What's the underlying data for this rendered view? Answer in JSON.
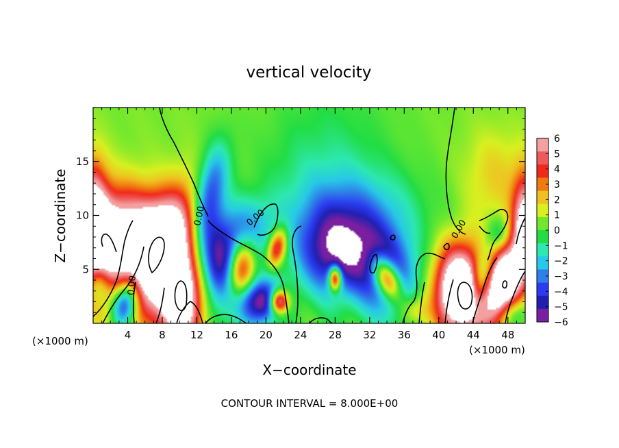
{
  "chart_data": {
    "type": "heatmap",
    "title": "vertical velocity",
    "xlabel": "X−coordinate",
    "ylabel": "Z−coordinate",
    "x_unit_left": "(×1000 m)",
    "x_unit_right": "(×1000 m)",
    "footer": "CONTOUR INTERVAL = 8.000E+00",
    "xlim": [
      0,
      50
    ],
    "ylim": [
      0,
      20
    ],
    "x_ticks": [
      4,
      8,
      12,
      16,
      20,
      24,
      28,
      32,
      36,
      40,
      44,
      48
    ],
    "y_ticks": [
      5,
      10,
      15
    ],
    "colorbar": {
      "min": -6,
      "max": 6,
      "ticks": [
        "6",
        "5",
        "4",
        "3",
        "2",
        "1",
        "0",
        "−1",
        "−2",
        "−3",
        "−4",
        "−5",
        "−6"
      ],
      "colors": [
        "#7a1fa0",
        "#2020b0",
        "#2b3cf0",
        "#2e7fe8",
        "#27c9e8",
        "#2de8b0",
        "#22dd44",
        "#6fe82e",
        "#d8f020",
        "#f0c020",
        "#f07a10",
        "#f02a1a",
        "#ee5a5a",
        "#f4a0a0"
      ]
    },
    "contour_labels": [
      {
        "text": "0.00",
        "x": 12.6,
        "y": 9.9,
        "rotate": -78
      },
      {
        "text": "0.00",
        "x": 19.0,
        "y": 9.6,
        "rotate": -40
      },
      {
        "text": "0.00",
        "x": 4.8,
        "y": 3.5,
        "rotate": -85
      },
      {
        "text": "0.00",
        "x": 42.6,
        "y": 8.6,
        "rotate": -60
      }
    ],
    "features": [
      {
        "x": 1.0,
        "z": 7.2,
        "w": 2.0,
        "peak": 9.5,
        "sx": 2.2,
        "sz": 3.5,
        "rot": -30
      },
      {
        "x": 0.0,
        "z": 11.0,
        "w": 1.5,
        "peak": 6.0,
        "sx": 1.2,
        "sz": 3.0,
        "rot": 0
      },
      {
        "x": 7.5,
        "z": 6.5,
        "w": 2.2,
        "peak": 11.0,
        "sx": 2.2,
        "sz": 4.2,
        "rot": -35
      },
      {
        "x": 10.0,
        "z": 2.5,
        "w": 2.0,
        "peak": 10.0,
        "sx": 1.8,
        "sz": 3.0,
        "rot": 0
      },
      {
        "x": 6.0,
        "z": 10.0,
        "w": 1.0,
        "peak": 2.5,
        "sx": 2.0,
        "sz": 2.0,
        "rot": 0
      },
      {
        "x": 3.8,
        "z": 2.0,
        "w": 1.5,
        "peak": -8.0,
        "sx": 1.1,
        "sz": 1.7,
        "rot": -20
      },
      {
        "x": 0.5,
        "z": 3.8,
        "w": 1.0,
        "peak": -4.0,
        "sx": 1.0,
        "sz": 1.5,
        "rot": 0
      },
      {
        "x": 13.5,
        "z": 12.0,
        "w": 1.5,
        "peak": -5.0,
        "sx": 1.3,
        "sz": 3.2,
        "rot": -15
      },
      {
        "x": 15.5,
        "z": 5.0,
        "w": 2.0,
        "peak": -7.5,
        "sx": 2.2,
        "sz": 3.3,
        "rot": 25
      },
      {
        "x": 17.0,
        "z": 4.8,
        "w": 1.5,
        "peak": 9.0,
        "sx": 1.2,
        "sz": 2.0,
        "rot": -10
      },
      {
        "x": 20.0,
        "z": 2.0,
        "w": 1.5,
        "peak": -6.0,
        "sx": 1.6,
        "sz": 1.3,
        "rot": 0
      },
      {
        "x": 21.5,
        "z": 2.0,
        "w": 1.0,
        "peak": 9.0,
        "sx": 0.8,
        "sz": 0.8,
        "rot": 0
      },
      {
        "x": 21.3,
        "z": 7.0,
        "w": 1.0,
        "peak": 5.5,
        "sx": 0.7,
        "sz": 1.3,
        "rot": -20
      },
      {
        "x": 18.0,
        "z": 9.0,
        "w": 1.0,
        "peak": -2.5,
        "sx": 2.2,
        "sz": 2.0,
        "rot": 0
      },
      {
        "x": 28.0,
        "z": 6.5,
        "w": 2.0,
        "peak": -5.5,
        "sx": 3.0,
        "sz": 2.8,
        "rot": 0
      },
      {
        "x": 28.0,
        "z": 4.2,
        "w": 1.0,
        "peak": 8.0,
        "sx": 0.5,
        "sz": 0.8,
        "rot": 0
      },
      {
        "x": 34.0,
        "z": 4.5,
        "w": 2.0,
        "peak": -6.0,
        "sx": 2.3,
        "sz": 3.0,
        "rot": 30
      },
      {
        "x": 34.0,
        "z": 4.2,
        "w": 1.5,
        "peak": 9.0,
        "sx": 1.0,
        "sz": 1.7,
        "rot": 35
      },
      {
        "x": 30.5,
        "z": 10.0,
        "w": 1.0,
        "peak": -2.5,
        "sx": 5.5,
        "sz": 3.0,
        "rot": 0
      },
      {
        "x": 42.5,
        "z": 3.0,
        "w": 2.0,
        "peak": 11.0,
        "sx": 2.0,
        "sz": 2.8,
        "rot": 0
      },
      {
        "x": 47.5,
        "z": 3.8,
        "w": 2.0,
        "peak": 10.0,
        "sx": 1.7,
        "sz": 2.8,
        "rot": -20
      },
      {
        "x": 45.0,
        "z": 4.0,
        "w": 1.5,
        "peak": -6.0,
        "sx": 1.0,
        "sz": 2.0,
        "rot": -15
      },
      {
        "x": 47.0,
        "z": 8.2,
        "w": 1.0,
        "peak": -2.5,
        "sx": 1.0,
        "sz": 1.2,
        "rot": 0
      },
      {
        "x": 50.0,
        "z": 9.5,
        "w": 1.0,
        "peak": 7.0,
        "sx": 1.0,
        "sz": 3.0,
        "rot": 0
      },
      {
        "x": 48.5,
        "z": 1.0,
        "w": 1.0,
        "peak": -3.5,
        "sx": 1.2,
        "sz": 1.2,
        "rot": 0
      },
      {
        "x": 46.5,
        "z": 13.5,
        "w": 1.0,
        "peak": 1.5,
        "sx": 2.5,
        "sz": 3.0,
        "rot": 0
      },
      {
        "x": 37.0,
        "z": 1.2,
        "w": 1.0,
        "peak": 2.5,
        "sx": 1.2,
        "sz": 1.0,
        "rot": 0
      },
      {
        "x": 26.0,
        "z": 14.0,
        "w": 1.0,
        "peak": -1.2,
        "sx": 5.0,
        "sz": 5.0,
        "rot": 0
      }
    ]
  }
}
